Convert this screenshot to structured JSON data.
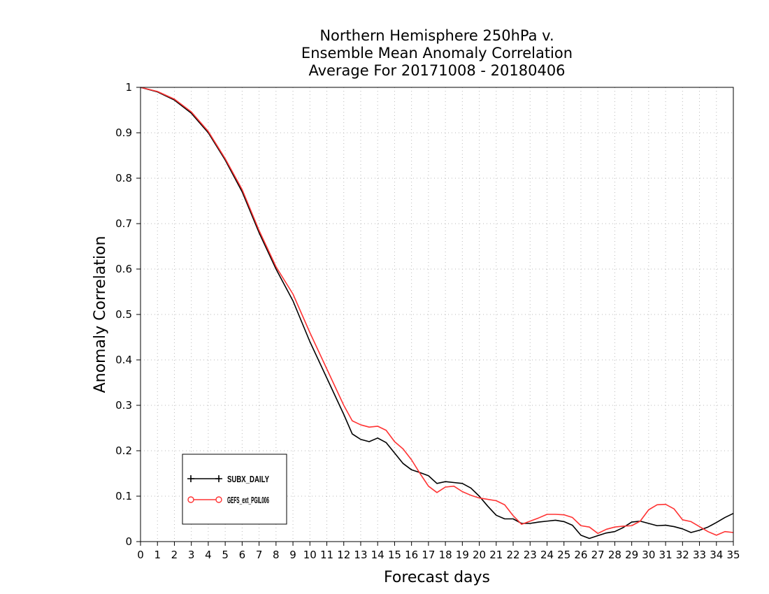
{
  "chart_data": {
    "type": "line",
    "title": [
      "Northern Hemisphere 250hPa v.",
      "Ensemble Mean Anomaly Correlation",
      "Average For 20171008 - 20180406"
    ],
    "xlabel": "Forecast days",
    "ylabel": "Anomaly Correlation",
    "xlim": [
      0,
      35
    ],
    "ylim": [
      0,
      1
    ],
    "xticks": [
      0,
      1,
      2,
      3,
      4,
      5,
      6,
      7,
      8,
      9,
      10,
      11,
      12,
      13,
      14,
      15,
      16,
      17,
      18,
      19,
      20,
      21,
      22,
      23,
      24,
      25,
      26,
      27,
      28,
      29,
      30,
      31,
      32,
      33,
      34,
      35
    ],
    "yticks": [
      0,
      0.1,
      0.2,
      0.3,
      0.4,
      0.5,
      0.6,
      0.7,
      0.8,
      0.9,
      1
    ],
    "ytick_labels": [
      "0",
      "0.1",
      "0.2",
      "0.3",
      "0.4",
      "0.5",
      "0.6",
      "0.7",
      "0.8",
      "0.9",
      "1"
    ],
    "grid": true,
    "legend_position": "bottom-left",
    "series": [
      {
        "name": "SUBX_DAILY",
        "color": "#000000",
        "marker": "plus",
        "x": [
          0,
          1,
          2,
          3,
          4,
          5,
          6,
          7,
          8,
          9,
          10,
          11,
          12,
          12.5,
          13,
          13.5,
          14,
          14.5,
          15,
          15.5,
          16,
          16.5,
          17,
          17.5,
          18,
          18.5,
          19,
          19.5,
          20,
          20.5,
          21,
          21.5,
          22,
          22.5,
          23,
          23.5,
          24,
          24.5,
          25,
          25.5,
          26,
          26.5,
          27,
          27.5,
          28,
          28.5,
          29,
          29.5,
          30,
          30.5,
          31,
          31.5,
          32,
          32.5,
          33,
          33.5,
          34,
          34.5,
          35
        ],
        "y": [
          1.0,
          0.99,
          0.972,
          0.943,
          0.9,
          0.84,
          0.77,
          0.68,
          0.6,
          0.53,
          0.44,
          0.36,
          0.28,
          0.237,
          0.225,
          0.22,
          0.228,
          0.218,
          0.195,
          0.172,
          0.158,
          0.152,
          0.145,
          0.128,
          0.132,
          0.13,
          0.128,
          0.118,
          0.1,
          0.078,
          0.058,
          0.05,
          0.05,
          0.04,
          0.04,
          0.043,
          0.045,
          0.047,
          0.044,
          0.036,
          0.014,
          0.007,
          0.013,
          0.019,
          0.022,
          0.031,
          0.043,
          0.045,
          0.04,
          0.035,
          0.036,
          0.033,
          0.028,
          0.02,
          0.025,
          0.032,
          0.042,
          0.053,
          0.062
        ]
      },
      {
        "name": "GEFS_ext_PGIL006",
        "color": "#ff3333",
        "marker": "circle",
        "x": [
          0,
          1,
          2,
          3,
          4,
          5,
          6,
          7,
          8,
          9,
          10,
          11,
          12,
          12.5,
          13,
          13.5,
          14,
          14.5,
          15,
          15.5,
          16,
          16.5,
          17,
          17.5,
          18,
          18.5,
          19,
          19.5,
          20,
          20.5,
          21,
          21.5,
          22,
          22.5,
          23,
          23.5,
          24,
          24.5,
          25,
          25.5,
          26,
          26.5,
          27,
          27.5,
          28,
          28.5,
          29,
          29.5,
          30,
          30.5,
          31,
          31.5,
          32,
          32.5,
          33,
          33.5,
          34,
          34.5,
          35
        ],
        "y": [
          1.0,
          0.991,
          0.974,
          0.946,
          0.903,
          0.843,
          0.775,
          0.685,
          0.605,
          0.545,
          0.46,
          0.38,
          0.3,
          0.266,
          0.257,
          0.252,
          0.254,
          0.245,
          0.22,
          0.204,
          0.18,
          0.15,
          0.122,
          0.108,
          0.12,
          0.122,
          0.11,
          0.102,
          0.096,
          0.093,
          0.09,
          0.081,
          0.057,
          0.038,
          0.045,
          0.052,
          0.06,
          0.06,
          0.059,
          0.053,
          0.035,
          0.032,
          0.018,
          0.027,
          0.032,
          0.034,
          0.035,
          0.045,
          0.07,
          0.081,
          0.082,
          0.072,
          0.048,
          0.044,
          0.033,
          0.022,
          0.014,
          0.022,
          0.02
        ]
      }
    ]
  }
}
